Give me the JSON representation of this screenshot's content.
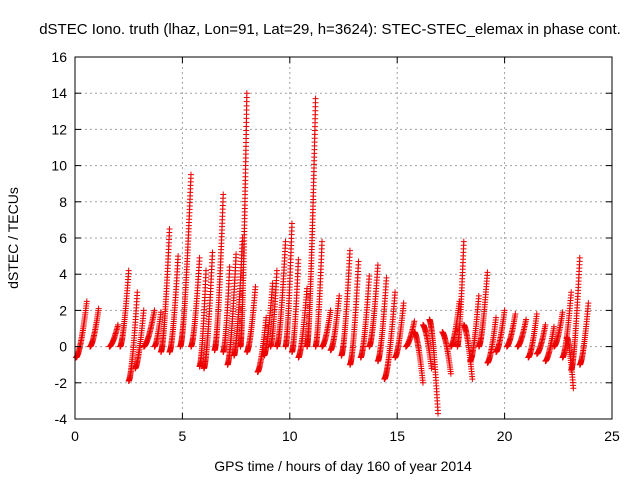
{
  "chart_data": {
    "type": "scatter",
    "title": "dSTEC Iono. truth (lhaz, Lon=91, Lat=29, h=3624): STEC-STEC_elemax in phase cont.",
    "xlabel": "GPS time / hours of day 160 of year 2014",
    "ylabel": "dSTEC  / TECUs",
    "xlim": [
      0,
      25
    ],
    "ylim": [
      -4,
      16
    ],
    "xticks": [
      0,
      5,
      10,
      15,
      20,
      25
    ],
    "yticks": [
      -4,
      -2,
      0,
      2,
      4,
      6,
      8,
      10,
      12,
      14,
      16
    ],
    "grid": true,
    "marker": "+",
    "color": "#ee0000",
    "arcs": [
      {
        "t0": 0.05,
        "t1": 0.55,
        "ymin": -0.6,
        "ymax": 2.5
      },
      {
        "t0": 0.7,
        "t1": 1.1,
        "ymin": 0,
        "ymax": 2.1
      },
      {
        "t0": 1.6,
        "t1": 2.0,
        "ymin": 0,
        "ymax": 1.2
      },
      {
        "t0": 2.1,
        "t1": 2.5,
        "ymin": 0,
        "ymax": 4.2
      },
      {
        "t0": 2.5,
        "t1": 2.9,
        "ymin": -1.9,
        "ymax": 3.0
      },
      {
        "t0": 2.8,
        "t1": 3.2,
        "ymin": -1.2,
        "ymax": 2.0
      },
      {
        "t0": 3.2,
        "t1": 3.7,
        "ymin": 0,
        "ymax": 2.0
      },
      {
        "t0": 3.7,
        "t1": 4.0,
        "ymin": 0,
        "ymax": 1.9
      },
      {
        "t0": 4.0,
        "t1": 4.4,
        "ymin": -0.3,
        "ymax": 6.5
      },
      {
        "t0": 4.4,
        "t1": 4.8,
        "ymin": -0.3,
        "ymax": 5.0
      },
      {
        "t0": 4.9,
        "t1": 5.4,
        "ymin": 0,
        "ymax": 9.5
      },
      {
        "t0": 5.4,
        "t1": 5.8,
        "ymin": 0,
        "ymax": 4.9
      },
      {
        "t0": 5.8,
        "t1": 6.1,
        "ymin": -1.1,
        "ymax": 4.2
      },
      {
        "t0": 6.0,
        "t1": 6.4,
        "ymin": -1.2,
        "ymax": 5.2
      },
      {
        "t0": 6.5,
        "t1": 6.9,
        "ymin": -0.2,
        "ymax": 8.4
      },
      {
        "t0": 6.9,
        "t1": 7.2,
        "ymin": -0.3,
        "ymax": 4.4
      },
      {
        "t0": 7.1,
        "t1": 7.5,
        "ymin": -1.0,
        "ymax": 5.1
      },
      {
        "t0": 7.4,
        "t1": 7.8,
        "ymin": -0.5,
        "ymax": 6.0
      },
      {
        "t0": 7.7,
        "t1": 8.0,
        "ymin": 0,
        "ymax": 14.0
      },
      {
        "t0": 8.0,
        "t1": 8.4,
        "ymin": -0.3,
        "ymax": 3.3
      },
      {
        "t0": 8.5,
        "t1": 8.9,
        "ymin": -1.4,
        "ymax": 1.6
      },
      {
        "t0": 8.8,
        "t1": 9.2,
        "ymin": -0.5,
        "ymax": 3.5
      },
      {
        "t0": 9.1,
        "t1": 9.4,
        "ymin": 0,
        "ymax": 4.2
      },
      {
        "t0": 9.4,
        "t1": 9.8,
        "ymin": 0,
        "ymax": 5.8
      },
      {
        "t0": 9.8,
        "t1": 10.1,
        "ymin": 0,
        "ymax": 6.8
      },
      {
        "t0": 10.1,
        "t1": 10.4,
        "ymin": -0.3,
        "ymax": 4.8
      },
      {
        "t0": 10.4,
        "t1": 10.8,
        "ymin": -0.6,
        "ymax": 3.2
      },
      {
        "t0": 10.8,
        "t1": 11.2,
        "ymin": 0,
        "ymax": 13.7
      },
      {
        "t0": 11.2,
        "t1": 11.5,
        "ymin": 0,
        "ymax": 5.8
      },
      {
        "t0": 11.5,
        "t1": 11.9,
        "ymin": 0,
        "ymax": 2.0
      },
      {
        "t0": 11.9,
        "t1": 12.3,
        "ymin": -0.2,
        "ymax": 2.8
      },
      {
        "t0": 12.4,
        "t1": 12.8,
        "ymin": -0.5,
        "ymax": 5.3
      },
      {
        "t0": 12.8,
        "t1": 13.2,
        "ymin": -1.0,
        "ymax": 4.7
      },
      {
        "t0": 13.3,
        "t1": 13.7,
        "ymin": -0.6,
        "ymax": 3.9
      },
      {
        "t0": 13.7,
        "t1": 14.1,
        "ymin": 0,
        "ymax": 4.5
      },
      {
        "t0": 14.1,
        "t1": 14.5,
        "ymin": -0.8,
        "ymax": 3.8
      },
      {
        "t0": 14.4,
        "t1": 14.9,
        "ymin": -1.8,
        "ymax": 3.0
      },
      {
        "t0": 14.9,
        "t1": 15.3,
        "ymin": -0.6,
        "ymax": 2.4
      },
      {
        "t0": 15.4,
        "t1": 15.8,
        "ymin": 0,
        "ymax": 1.4
      },
      {
        "t0": 15.8,
        "t1": 16.2,
        "ymin": -2.0,
        "ymax": 0.8
      },
      {
        "t0": 16.2,
        "t1": 16.6,
        "ymin": -1.2,
        "ymax": 1.2
      },
      {
        "t0": 16.5,
        "t1": 16.9,
        "ymin": -3.7,
        "ymax": 1.5
      },
      {
        "t0": 17.1,
        "t1": 17.5,
        "ymin": -1.5,
        "ymax": 0.8
      },
      {
        "t0": 17.5,
        "t1": 17.9,
        "ymin": 0,
        "ymax": 2.5
      },
      {
        "t0": 17.8,
        "t1": 18.1,
        "ymin": 0,
        "ymax": 5.8
      },
      {
        "t0": 18.1,
        "t1": 18.5,
        "ymin": -1.8,
        "ymax": 1.2
      },
      {
        "t0": 18.4,
        "t1": 18.8,
        "ymin": -0.8,
        "ymax": 2.8
      },
      {
        "t0": 18.8,
        "t1": 19.2,
        "ymin": 0,
        "ymax": 4.1
      },
      {
        "t0": 19.2,
        "t1": 19.6,
        "ymin": -0.9,
        "ymax": 1.6
      },
      {
        "t0": 19.6,
        "t1": 20.0,
        "ymin": -0.3,
        "ymax": 2.0
      },
      {
        "t0": 20.1,
        "t1": 20.5,
        "ymin": 0,
        "ymax": 1.8
      },
      {
        "t0": 20.6,
        "t1": 21.0,
        "ymin": 0,
        "ymax": 1.5
      },
      {
        "t0": 21.1,
        "t1": 21.5,
        "ymin": -0.6,
        "ymax": 1.8
      },
      {
        "t0": 21.5,
        "t1": 21.9,
        "ymin": -0.4,
        "ymax": 1.2
      },
      {
        "t0": 21.9,
        "t1": 22.3,
        "ymin": -0.8,
        "ymax": 1.1
      },
      {
        "t0": 22.3,
        "t1": 22.7,
        "ymin": 0,
        "ymax": 1.9
      },
      {
        "t0": 22.7,
        "t1": 23.1,
        "ymin": -0.6,
        "ymax": 3.0
      },
      {
        "t0": 22.9,
        "t1": 23.2,
        "ymin": -2.3,
        "ymax": 0.5
      },
      {
        "t0": 23.1,
        "t1": 23.5,
        "ymin": -1.3,
        "ymax": 4.9
      },
      {
        "t0": 23.5,
        "t1": 23.9,
        "ymin": -1.0,
        "ymax": 2.4
      }
    ]
  }
}
